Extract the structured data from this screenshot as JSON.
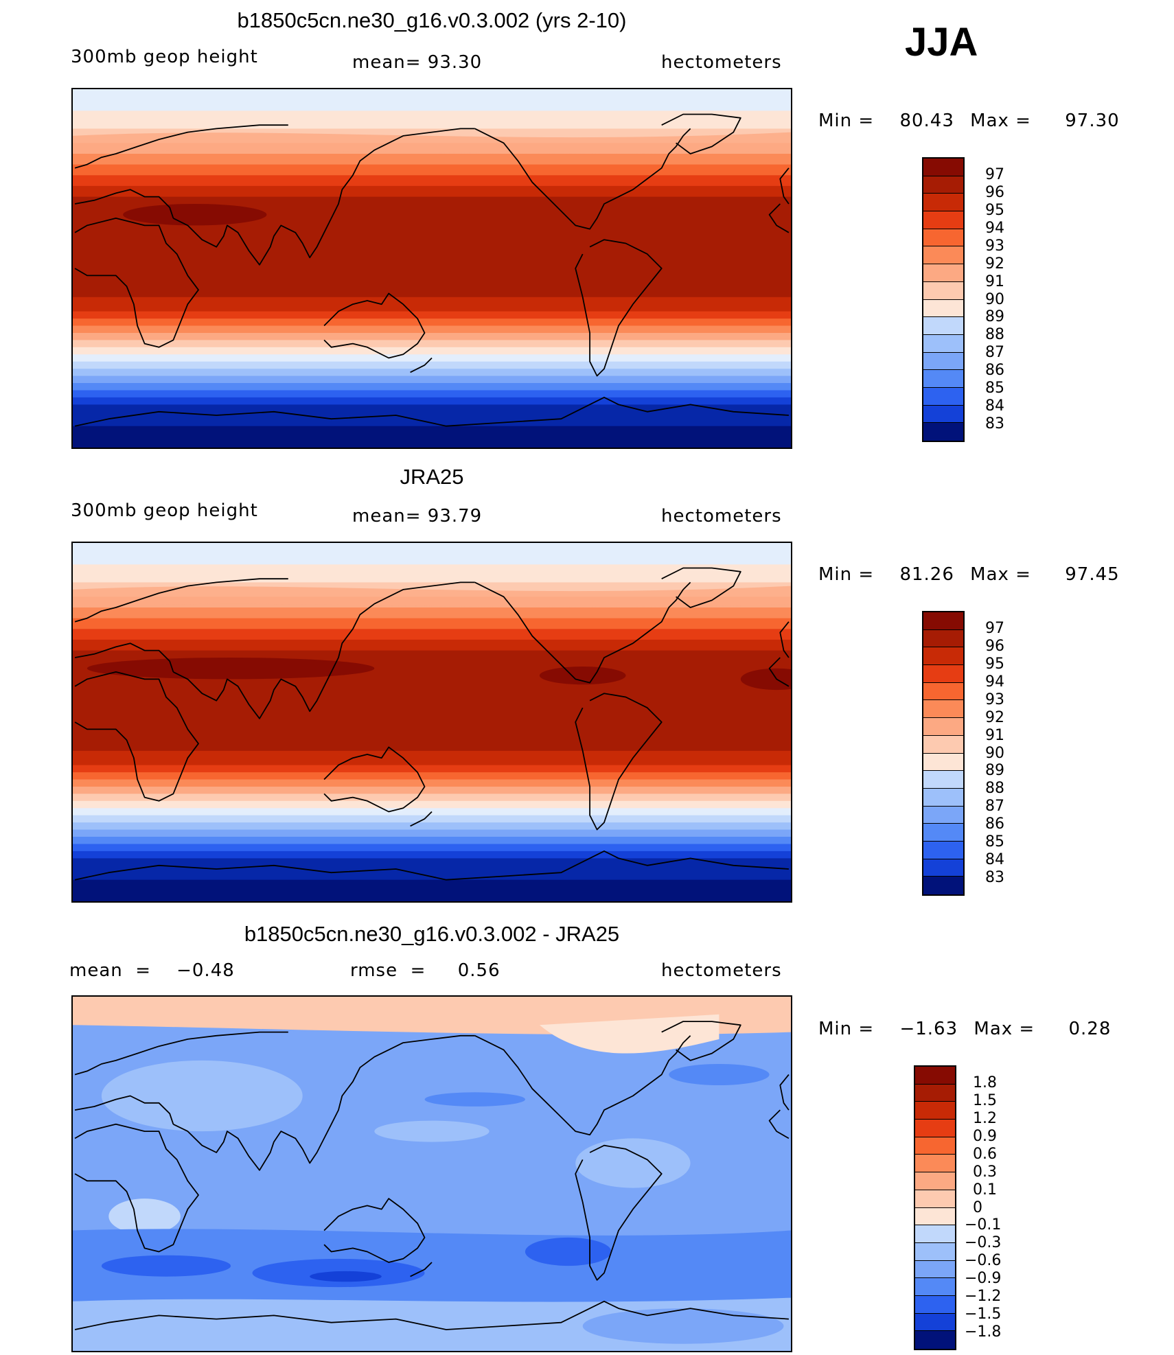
{
  "season": "JJA",
  "units": "hectometers",
  "colors": {
    "warm": [
      "#fde5d6",
      "#fdcab0",
      "#fca983",
      "#fb8a58",
      "#f76630",
      "#e63d13",
      "#c82a06",
      "#a61c04",
      "#860b02"
    ],
    "cool": [
      "#e3eefc",
      "#c1d8fb",
      "#9dc0fa",
      "#7ba6f8",
      "#5489f6",
      "#2d62f0",
      "#1441d8",
      "#0627a8",
      "#01127a"
    ]
  },
  "panels": [
    {
      "title": "b1850c5cn.ne30_g16.v0.3.002 (yrs 2-10)",
      "left_label": "300mb  geop  height",
      "center_label": "mean=   93.30",
      "right_label": "hectometers",
      "min_label": "Min  =",
      "min_value": "80.43",
      "max_label": "Max  =",
      "max_value": "97.30",
      "colorbar_ticks": [
        "97",
        "96",
        "95",
        "94",
        "93",
        "92",
        "91",
        "90",
        "89",
        "88",
        "87",
        "86",
        "85",
        "84",
        "83"
      ]
    },
    {
      "title": "JRA25",
      "left_label": "300mb  geop  height",
      "center_label": "mean=   93.79",
      "right_label": "hectometers",
      "min_label": "Min  =",
      "min_value": "81.26",
      "max_label": "Max  =",
      "max_value": "97.45",
      "colorbar_ticks": [
        "97",
        "96",
        "95",
        "94",
        "93",
        "92",
        "91",
        "90",
        "89",
        "88",
        "87",
        "86",
        "85",
        "84",
        "83"
      ]
    },
    {
      "title": "b1850c5cn.ne30_g16.v0.3.002 - JRA25",
      "left_label": "mean  =    −0.48",
      "center_label": "rmse  =     0.56",
      "right_label": "hectometers",
      "min_label": "Min  =",
      "min_value": "−1.63",
      "max_label": "Max  =",
      "max_value": "0.28",
      "colorbar_ticks": [
        "1.8",
        "1.5",
        "1.2",
        "0.9",
        "0.6",
        "0.3",
        "0.1",
        "0",
        "−0.1",
        "−0.3",
        "−0.6",
        "−0.9",
        "−1.2",
        "−1.5",
        "−1.8"
      ]
    }
  ]
}
